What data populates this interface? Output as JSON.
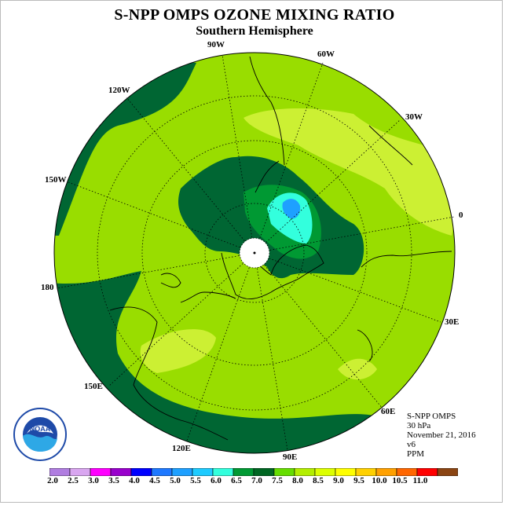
{
  "title": "S-NPP OMPS OZONE MIXING RATIO",
  "subtitle": "Southern Hemisphere",
  "longitude_labels": [
    "90W",
    "60W",
    "120W",
    "30W",
    "150W",
    "0",
    "180",
    "30E",
    "150E",
    "60E",
    "120E",
    "90E"
  ],
  "info": {
    "instrument": "S-NPP OMPS",
    "level": "30 hPa",
    "date": "November 21, 2016",
    "version": "v6",
    "units": "PPM"
  },
  "logo_text": "NOAA",
  "colorbar": {
    "ticks": [
      "2.0",
      "2.5",
      "3.0",
      "3.5",
      "4.0",
      "4.5",
      "5.0",
      "5.5",
      "6.0",
      "6.5",
      "7.0",
      "7.5",
      "8.0",
      "8.5",
      "9.0",
      "9.5",
      "10.0",
      "10.5",
      "11.0"
    ],
    "colors": [
      "#b07de0",
      "#d9a6f0",
      "#ff00ff",
      "#9900cc",
      "#0000ff",
      "#1e78ff",
      "#1ea0ff",
      "#1ecbff",
      "#33ffdd",
      "#009933",
      "#006622",
      "#66dd00",
      "#b3ee00",
      "#ddff00",
      "#ffff00",
      "#ffd000",
      "#ffa000",
      "#ff6600",
      "#ff0000",
      "#8b4513"
    ]
  },
  "colors": {
    "background_field": "#99dd00",
    "high_band": "#ccf033",
    "low_band": "#006633",
    "mid_band": "#009933",
    "min_core": "#33ffdd"
  }
}
